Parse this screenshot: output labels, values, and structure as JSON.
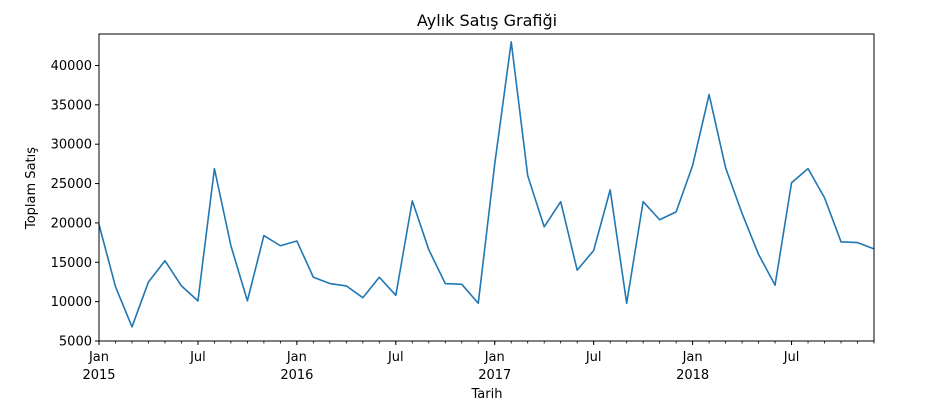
{
  "chart_data": {
    "type": "line",
    "title": "Aylık Satış Grafiği",
    "xlabel": "Tarih",
    "ylabel": "Toplam Satış",
    "ylim": [
      5000,
      44000
    ],
    "yticks": [
      5000,
      10000,
      15000,
      20000,
      25000,
      30000,
      35000,
      40000
    ],
    "x_ticks": [
      {
        "date": "2015-01",
        "label": "Jan",
        "sublabel": "2015"
      },
      {
        "date": "2015-07",
        "label": "Jul",
        "sublabel": ""
      },
      {
        "date": "2016-01",
        "label": "Jan",
        "sublabel": "2016"
      },
      {
        "date": "2016-07",
        "label": "Jul",
        "sublabel": ""
      },
      {
        "date": "2017-01",
        "label": "Jan",
        "sublabel": "2017"
      },
      {
        "date": "2017-07",
        "label": "Jul",
        "sublabel": ""
      },
      {
        "date": "2018-01",
        "label": "Jan",
        "sublabel": "2018"
      },
      {
        "date": "2018-07",
        "label": "Jul",
        "sublabel": ""
      }
    ],
    "xlim": [
      "2015-01",
      "2018-12"
    ],
    "grid": false,
    "color": "#1f77b4",
    "series": [
      {
        "x": [
          "2015-01",
          "2015-02",
          "2015-03",
          "2015-04",
          "2015-05",
          "2015-06",
          "2015-07",
          "2015-08",
          "2015-09",
          "2015-10",
          "2015-11",
          "2015-12",
          "2016-01",
          "2016-02",
          "2016-03",
          "2016-04",
          "2016-05",
          "2016-06",
          "2016-07",
          "2016-08",
          "2016-09",
          "2016-10",
          "2016-11",
          "2016-12",
          "2017-01",
          "2017-02",
          "2017-03",
          "2017-04",
          "2017-05",
          "2017-06",
          "2017-07",
          "2017-08",
          "2017-09",
          "2017-10",
          "2017-11",
          "2017-12",
          "2018-01",
          "2018-02",
          "2018-03",
          "2018-04",
          "2018-05",
          "2018-06",
          "2018-07",
          "2018-08",
          "2018-09",
          "2018-10",
          "2018-11",
          "2018-12"
        ],
        "values": [
          19800,
          11900,
          6800,
          12500,
          15200,
          12000,
          10100,
          26900,
          17100,
          10100,
          18400,
          17100,
          17700,
          13100,
          12300,
          12000,
          10500,
          13100,
          10800,
          22800,
          16600,
          12300,
          12200,
          9800,
          27500,
          43000,
          26000,
          19500,
          22700,
          14000,
          16500,
          24200,
          9800,
          22700,
          20400,
          21400,
          27300,
          36300,
          27000,
          21200,
          16000,
          12100,
          25100,
          26900,
          23200,
          17600,
          17500,
          16700
        ]
      }
    ]
  }
}
